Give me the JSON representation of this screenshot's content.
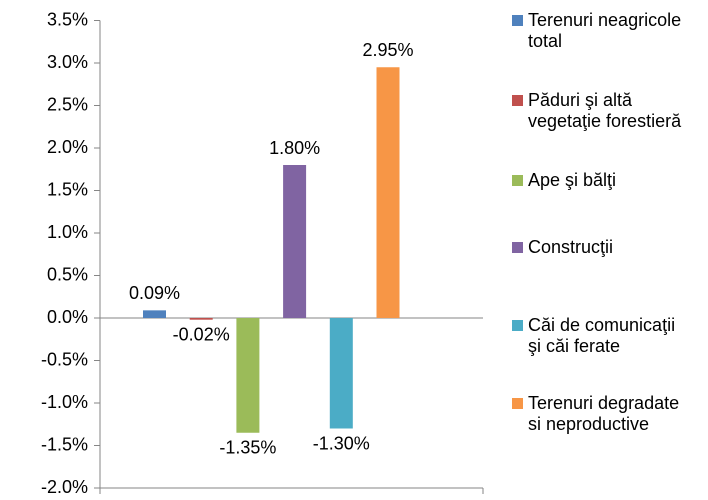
{
  "chart_data": {
    "type": "bar",
    "categories": [
      null
    ],
    "series": [
      {
        "name": "Terenuri neagricole total",
        "color": "#4f81bd",
        "values": [
          0.09
        ],
        "value_labels": [
          "0.09%"
        ]
      },
      {
        "name": "Păduri şi altă vegetaţie forestieră",
        "color": "#c0504d",
        "values": [
          -0.02
        ],
        "value_labels": [
          "-0.02%"
        ]
      },
      {
        "name": "Ape şi bălţi",
        "color": "#9bbb59",
        "values": [
          -1.35
        ],
        "value_labels": [
          "-1.35%"
        ]
      },
      {
        "name": "Construcţii",
        "color": "#8064a2",
        "values": [
          1.8
        ],
        "value_labels": [
          "1.80%"
        ]
      },
      {
        "name": "Căi de comunicaţii şi căi ferate",
        "color": "#4bacc6",
        "values": [
          -1.3
        ],
        "value_labels": [
          "-1.30%"
        ]
      },
      {
        "name": "Terenuri degradate si neproductive",
        "color": "#f79646",
        "values": [
          2.95
        ],
        "value_labels": [
          "2.95%"
        ]
      }
    ],
    "ylim": [
      -2.0,
      3.5
    ],
    "yticks": [
      {
        "value": -2.0,
        "label": "-2.0%"
      },
      {
        "value": -1.5,
        "label": "-1.5%"
      },
      {
        "value": -1.0,
        "label": "-1.0%"
      },
      {
        "value": -0.5,
        "label": "-0.5%"
      },
      {
        "value": 0.0,
        "label": "0.0%"
      },
      {
        "value": 0.5,
        "label": "0.5%"
      },
      {
        "value": 1.0,
        "label": "1.0%"
      },
      {
        "value": 1.5,
        "label": "1.5%"
      },
      {
        "value": 2.0,
        "label": "2.0%"
      },
      {
        "value": 2.5,
        "label": "2.5%"
      },
      {
        "value": 3.0,
        "label": "3.0%"
      },
      {
        "value": 3.5,
        "label": "3.5%"
      }
    ],
    "legend": "right"
  }
}
